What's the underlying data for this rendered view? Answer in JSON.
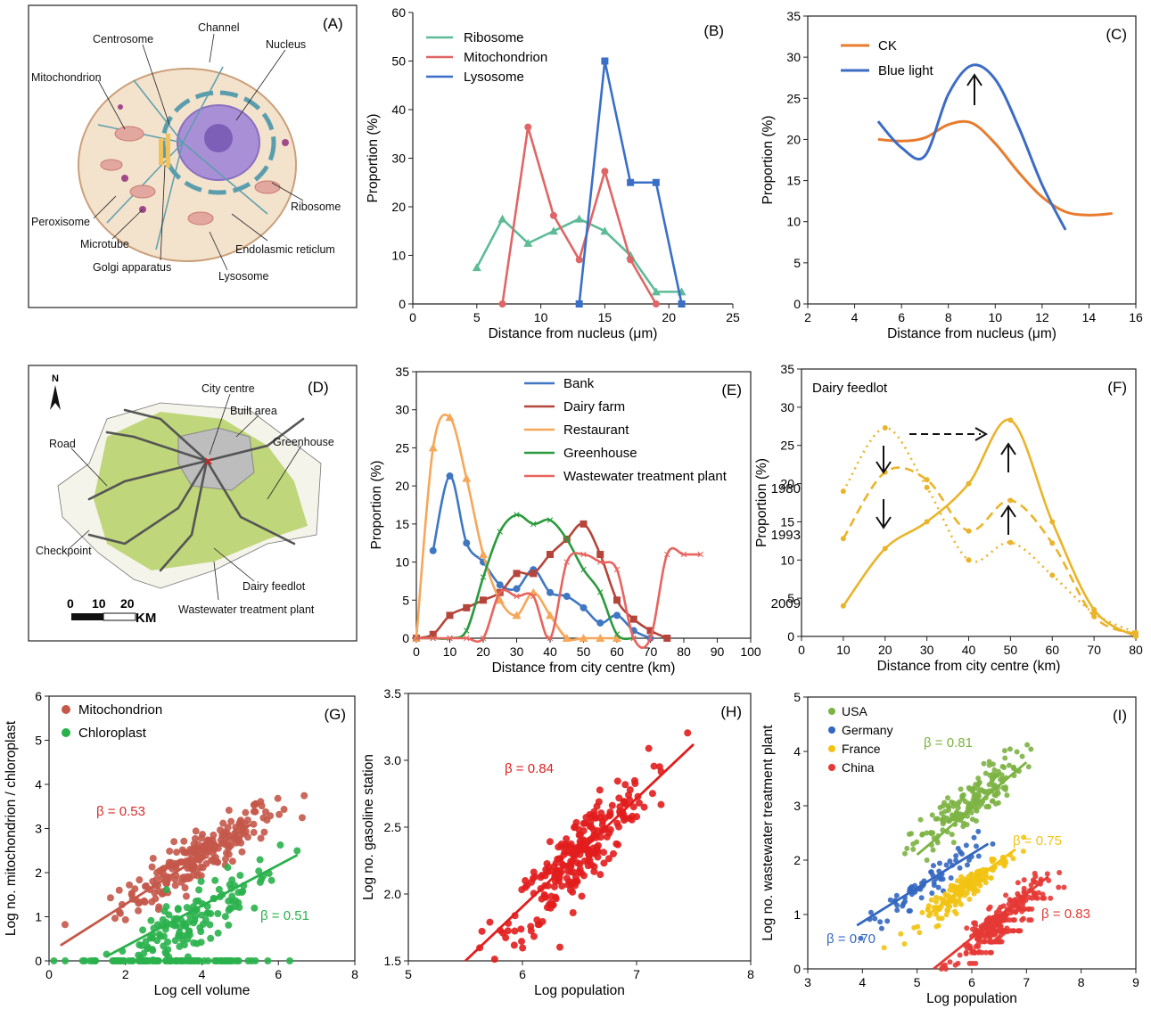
{
  "figure": {
    "panels": [
      {
        "id": "A",
        "tag": "(A)",
        "labels": [
          "Channel",
          "Centrosome",
          "Nucleus",
          "Mitochondrion",
          "Ribosome",
          "Peroxisome",
          "Microtube",
          "Endolasmic reticlum",
          "Golgi apparatus",
          "Lysosome"
        ]
      },
      {
        "id": "D",
        "tag": "(D)",
        "labels": [
          "City centre",
          "Built area",
          "Greenhouse",
          "Road",
          "Checkpoint",
          "Dairy feedlot",
          "Wastewater treatment plant"
        ],
        "north": "N",
        "scale_ticks": [
          "0",
          "10",
          "20"
        ],
        "scale_unit": "KM"
      }
    ]
  },
  "colors": {
    "ribosome": "#5dbb97",
    "mitochondrion": "#e06666",
    "lysosome": "#3a6fc8",
    "ck": "#e87c2e",
    "blue_light": "#3d6cc4",
    "bank": "#3f77c2",
    "dairy_farm": "#b5443a",
    "restaurant": "#f5a75a",
    "greenhouse": "#2a9a3c",
    "wwtp": "#e8645e",
    "feedlot": "#eab42a",
    "mito_scatter": "#c4584a",
    "chloro_scatter": "#2ab14c",
    "gas": "#e21d1d",
    "usa": "#7cb342",
    "germany": "#3367c0",
    "france": "#f2c312",
    "china": "#e53935"
  },
  "chart_data": [
    {
      "id": "B",
      "tag": "(B)",
      "type": "line",
      "xlabel": "Distance from nucleus (μm)",
      "ylabel": "Proportion (%)",
      "xlim": [
        0,
        25
      ],
      "ylim": [
        0,
        60
      ],
      "xticks": [
        "0",
        "5",
        "10",
        "15",
        "20",
        "25"
      ],
      "yticks": [
        "0",
        "10",
        "20",
        "30",
        "40",
        "50",
        "60"
      ],
      "series": [
        {
          "name": "Ribosome",
          "x": [
            5,
            7,
            9,
            11,
            13,
            15,
            17,
            19,
            21
          ],
          "y": [
            7.5,
            17.5,
            12.5,
            15,
            17.5,
            15,
            10,
            2.5,
            2.5
          ]
        },
        {
          "name": "Mitochondrion",
          "x": [
            7,
            9,
            11,
            13,
            15,
            17,
            19
          ],
          "y": [
            0,
            36.4,
            18.2,
            9.1,
            27.3,
            9.1,
            0
          ]
        },
        {
          "name": "Lysosome",
          "x": [
            13,
            15,
            17,
            19,
            21
          ],
          "y": [
            0,
            50,
            25,
            25,
            0
          ]
        }
      ]
    },
    {
      "id": "C",
      "tag": "(C)",
      "type": "line",
      "xlabel": "Distance from nucleus (μm)",
      "ylabel": "Proportion (%)",
      "xlim": [
        2,
        16
      ],
      "ylim": [
        0,
        35
      ],
      "xticks": [
        "2",
        "4",
        "6",
        "8",
        "10",
        "12",
        "14",
        "16"
      ],
      "yticks": [
        "0",
        "5",
        "10",
        "15",
        "20",
        "25",
        "30",
        "35"
      ],
      "series": [
        {
          "name": "CK",
          "x": [
            5,
            6,
            7,
            8,
            9,
            10,
            11,
            12,
            13,
            14,
            15
          ],
          "y": [
            20,
            19.8,
            20.2,
            21.8,
            22,
            19.5,
            16,
            13,
            11.2,
            10.8,
            11
          ]
        },
        {
          "name": "Blue light",
          "x": [
            5,
            6,
            7,
            8,
            9,
            10,
            11,
            12,
            13
          ],
          "y": [
            22.2,
            19,
            18,
            25.5,
            29,
            27.3,
            21.5,
            14.5,
            9
          ]
        }
      ]
    },
    {
      "id": "E",
      "tag": "(E)",
      "type": "line",
      "xlabel": "Distance from city centre (km)",
      "ylabel": "Proportion (%)",
      "xlim": [
        0,
        100
      ],
      "ylim": [
        0,
        35
      ],
      "xticks": [
        "0",
        "10",
        "20",
        "30",
        "40",
        "50",
        "60",
        "70",
        "80",
        "90",
        "100"
      ],
      "yticks": [
        "0",
        "5",
        "10",
        "15",
        "20",
        "25",
        "30",
        "35"
      ],
      "series": [
        {
          "name": "Bank",
          "x": [
            5,
            10,
            15,
            20,
            25,
            30,
            35,
            40,
            45,
            50,
            55,
            60,
            65,
            70
          ],
          "y": [
            11.5,
            21.3,
            12.5,
            10,
            7,
            6.5,
            9,
            6,
            5.5,
            4,
            2,
            3,
            1,
            0
          ]
        },
        {
          "name": "Dairy farm",
          "x": [
            0,
            5,
            10,
            15,
            20,
            25,
            30,
            35,
            40,
            45,
            50,
            55,
            60,
            65,
            70,
            75
          ],
          "y": [
            0,
            0.5,
            3,
            4,
            5,
            6,
            8.5,
            8.5,
            11,
            13,
            15,
            11,
            5,
            2.5,
            1,
            0
          ]
        },
        {
          "name": "Restaurant",
          "x": [
            0,
            5,
            10,
            15,
            20,
            25,
            30,
            35,
            40,
            45,
            50,
            55,
            60
          ],
          "y": [
            0,
            25,
            29,
            21,
            11,
            5,
            3,
            6,
            3,
            0,
            0,
            0,
            0
          ]
        },
        {
          "name": "Greenhouse",
          "x": [
            0,
            5,
            10,
            15,
            20,
            25,
            30,
            35,
            40,
            45,
            50,
            55,
            60,
            65
          ],
          "y": [
            0,
            0,
            0,
            1,
            8,
            14,
            16.2,
            15,
            15.5,
            13,
            9,
            6,
            0.5,
            0
          ]
        },
        {
          "name": "Wastewater treatment plant",
          "x": [
            0,
            5,
            10,
            15,
            20,
            25,
            30,
            35,
            40,
            45,
            50,
            55,
            60,
            65,
            70,
            75,
            80,
            85
          ],
          "y": [
            0,
            0,
            0,
            0,
            0,
            6,
            5.5,
            5.5,
            0,
            10,
            11,
            10,
            9,
            0,
            0,
            11,
            11,
            11
          ]
        }
      ]
    },
    {
      "id": "F",
      "tag": "(F)",
      "type": "line",
      "title": "Dairy feedlot",
      "xlabel": "Distance from city centre (km)",
      "ylabel": "Proportion (%)",
      "xlim": [
        0,
        80
      ],
      "ylim": [
        0,
        35
      ],
      "xticks": [
        "0",
        "10",
        "20",
        "30",
        "40",
        "50",
        "60",
        "70",
        "80"
      ],
      "yticks": [
        "0",
        "5",
        "10",
        "15",
        "20",
        "25",
        "30",
        "35"
      ],
      "series": [
        {
          "name": "1980",
          "x": [
            10,
            20,
            30,
            40,
            50,
            60,
            70,
            80
          ],
          "y": [
            19,
            27.3,
            19.5,
            10,
            12.3,
            8,
            3,
            0.5
          ]
        },
        {
          "name": "1993",
          "x": [
            10,
            20,
            30,
            40,
            50,
            60,
            70,
            80
          ],
          "y": [
            12.8,
            21.5,
            20.5,
            13.8,
            17.8,
            12.2,
            2.6,
            0.3
          ]
        },
        {
          "name": "2009",
          "x": [
            10,
            20,
            30,
            40,
            50,
            60,
            70,
            80
          ],
          "y": [
            4,
            11.5,
            15,
            20,
            28.3,
            15,
            3.5,
            0
          ]
        }
      ]
    },
    {
      "id": "G",
      "tag": "(G)",
      "type": "scatter",
      "xlabel": "Log cell volume",
      "ylabel": "Log no. mitochondrion / chloroplast",
      "xlim": [
        0,
        8
      ],
      "ylim": [
        0,
        6
      ],
      "xticks": [
        "0",
        "2",
        "4",
        "6",
        "8"
      ],
      "yticks": [
        "0",
        "1",
        "2",
        "3",
        "4",
        "5",
        "6"
      ],
      "series": [
        {
          "name": "Mitochondrion",
          "beta": "β = 0.53",
          "fit": [
            [
              0.3,
              0.35
            ],
            [
              5.3,
              3.1
            ]
          ],
          "cx": 3.9,
          "cy": 2.35,
          "sx": 1.0,
          "sy": 0.5,
          "slope": 0.53,
          "n": 230
        },
        {
          "name": "Chloroplast",
          "beta": "β = 0.51",
          "fit": [
            [
              1.5,
              0.1
            ],
            [
              6.5,
              2.4
            ]
          ],
          "cx": 3.6,
          "cy": 0.8,
          "sx": 1.2,
          "sy": 0.6,
          "slope": 0.51,
          "n": 230
        }
      ]
    },
    {
      "id": "H",
      "tag": "(H)",
      "type": "scatter",
      "xlabel": "Log population",
      "ylabel": "Log no. gasoline station",
      "xlim": [
        5,
        8
      ],
      "ylim": [
        1.5,
        3.5
      ],
      "xticks": [
        "5",
        "6",
        "7",
        "8"
      ],
      "yticks": [
        "1.5",
        "2.0",
        "2.5",
        "3.0",
        "3.5"
      ],
      "series": [
        {
          "name": "",
          "beta": "β = 0.84",
          "fit": [
            [
              5.5,
              1.5
            ],
            [
              7.5,
              3.12
            ]
          ],
          "cx": 6.5,
          "cy": 2.3,
          "sx": 0.3,
          "sy": 0.25,
          "slope": 0.84,
          "n": 260
        }
      ]
    },
    {
      "id": "I",
      "tag": "(I)",
      "type": "scatter",
      "xlabel": "Log population",
      "ylabel": "Log no. wastewater treatment plant",
      "xlim": [
        3,
        9
      ],
      "ylim": [
        0,
        5
      ],
      "xticks": [
        "3",
        "4",
        "5",
        "6",
        "7",
        "8",
        "9"
      ],
      "yticks": [
        "0",
        "1",
        "2",
        "3",
        "4",
        "5"
      ],
      "series": [
        {
          "name": "USA",
          "beta": "β = 0.81",
          "fit": [
            [
              5,
              2.1
            ],
            [
              7,
              3.8
            ]
          ],
          "cx": 5.9,
          "cy": 3.0,
          "sx": 0.5,
          "sy": 0.4,
          "slope": 0.81,
          "n": 180
        },
        {
          "name": "Germany",
          "beta": "β = 0.70",
          "fit": [
            [
              3.9,
              0.8
            ],
            [
              6.3,
              2.3
            ]
          ],
          "cx": 5.2,
          "cy": 1.6,
          "sx": 0.55,
          "sy": 0.25,
          "slope": 0.7,
          "n": 70
        },
        {
          "name": "France",
          "beta": "β = 0.75",
          "fit": [
            [
              5.2,
              1.0
            ],
            [
              6.8,
              2.2
            ]
          ],
          "cx": 5.9,
          "cy": 1.5,
          "sx": 0.4,
          "sy": 0.2,
          "slope": 0.75,
          "n": 180
        },
        {
          "name": "China",
          "beta": "β = 0.83",
          "fit": [
            [
              5.3,
              0.0
            ],
            [
              7.4,
              1.7
            ]
          ],
          "cx": 6.5,
          "cy": 0.9,
          "sx": 0.4,
          "sy": 0.25,
          "slope": 0.83,
          "n": 260
        }
      ]
    }
  ]
}
